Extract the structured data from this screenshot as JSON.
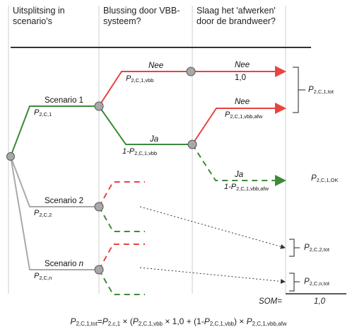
{
  "headers": {
    "col1": "Uitsplitsing in scenario's",
    "col2": "Blussing door VBB-systeem?",
    "col3": "Slaag het 'afwerken' door de brandweer?"
  },
  "branches": {
    "scenario1": {
      "label": "Scenario 1",
      "prob_main": "P",
      "prob_sub": "2,C,1"
    },
    "scenario2": {
      "label": "Scenario 2",
      "prob_main": "P",
      "prob_sub": "2,C,2"
    },
    "scenarion": {
      "label_prefix": "Scenario ",
      "label_n": "n",
      "prob_main": "P",
      "prob_sub": "2,C,n"
    }
  },
  "vbb": {
    "nee_label": "Nee",
    "nee_prob_main": "P",
    "nee_prob_sub": "2,C,1,vbb",
    "ja_label": "Ja",
    "ja_prob_main": "1-P",
    "ja_prob_sub": "2,C,1,vbb"
  },
  "afw": {
    "nee1_label": "Nee",
    "nee1_value": "1,0",
    "nee2_label": "Nee",
    "nee2_prob_main": "P",
    "nee2_prob_sub": "2,C,1,vbb,afw",
    "ja_label": "Ja",
    "ja_prob_main": "1-P",
    "ja_prob_sub": "2,C,1,vbb,afw"
  },
  "results": {
    "tot1_main": "P",
    "tot1_sub": "2,C,1,tot",
    "ok1_main": "P",
    "ok1_sub": "2,C,1,OK",
    "tot2_main": "P",
    "tot2_sub": "2,C,2,tot",
    "totn_main": "P",
    "totn_sub": "2,C,n,tot",
    "som_label": "SOM=",
    "som_value": "1,0"
  },
  "formula": {
    "p": "P",
    "lhs_sub": "2,C,1,tot",
    "eq": "=",
    "t1_sub": "2,c,1",
    "mul1": " × (",
    "t2_sub": "2,C,1,vbb",
    "mul2": " × 1,0 + (1-",
    "t3_sub": "2,C,1,vbb",
    "mul3": ") × ",
    "t4_sub": "2,C,1,vbb,afw"
  },
  "colors": {
    "red": "#e8433f",
    "green": "#3d8a3a",
    "grey": "#a9a9a9",
    "node_fill": "#a8a8a8"
  }
}
